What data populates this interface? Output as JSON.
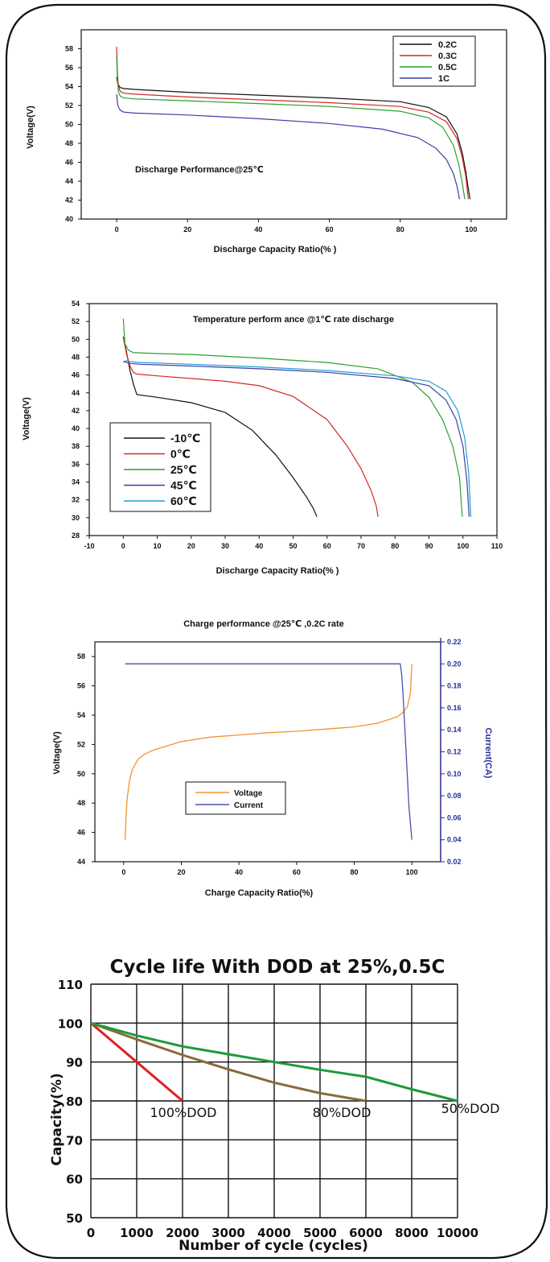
{
  "chart_data": [
    {
      "type": "line",
      "annotation": "Discharge Performance@25℃",
      "xlabel": "Discharge Capacity Ratio(% )",
      "ylabel": "Voltage(V)",
      "xlim": [
        -10,
        110
      ],
      "ylim": [
        40,
        60
      ],
      "x_ticks": [
        0,
        20,
        40,
        60,
        80,
        100
      ],
      "y_ticks": [
        40,
        42,
        44,
        46,
        48,
        50,
        52,
        54,
        56,
        58
      ],
      "legend_position": "top-right",
      "series": [
        {
          "name": "0.2C",
          "color": "#111111",
          "x": [
            0,
            0.3,
            1,
            2,
            5,
            20,
            40,
            60,
            80,
            88,
            93,
            96,
            97.5,
            98.5,
            99.2,
            99.7
          ],
          "y": [
            55,
            54.3,
            53.9,
            53.8,
            53.7,
            53.4,
            53.1,
            52.8,
            52.4,
            51.8,
            50.8,
            49.0,
            47.0,
            45.0,
            43.2,
            42.1
          ]
        },
        {
          "name": "0.3C",
          "color": "#d62728",
          "x": [
            0,
            0.2,
            0.5,
            1,
            2,
            5,
            20,
            40,
            60,
            80,
            88,
            93,
            96,
            97.5,
            98.5,
            99.2
          ],
          "y": [
            58.2,
            55.5,
            54.0,
            53.5,
            53.3,
            53.2,
            52.9,
            52.6,
            52.3,
            51.9,
            51.3,
            50.3,
            48.5,
            46.5,
            44.5,
            42.1
          ]
        },
        {
          "name": "0.5C",
          "color": "#2ca02c",
          "x": [
            0,
            0.2,
            0.5,
            1,
            2,
            5,
            20,
            40,
            60,
            80,
            88,
            92,
            95,
            96.5,
            97.5,
            98.2
          ],
          "y": [
            57.2,
            54.8,
            53.4,
            53.0,
            52.8,
            52.7,
            52.5,
            52.2,
            51.9,
            51.4,
            50.7,
            49.7,
            47.8,
            45.8,
            43.8,
            42.1
          ]
        },
        {
          "name": "1C",
          "color": "#3a3fa8",
          "x": [
            0,
            0.3,
            1,
            2,
            5,
            20,
            40,
            60,
            75,
            85,
            90,
            93,
            95,
            96,
            96.7
          ],
          "y": [
            53.2,
            52.0,
            51.5,
            51.3,
            51.2,
            51.0,
            50.6,
            50.1,
            49.5,
            48.6,
            47.5,
            46.3,
            44.8,
            43.5,
            42.1
          ]
        }
      ]
    },
    {
      "type": "line",
      "title": "Temperature perform ance @1℃ rate discharge",
      "xlabel": "Discharge Capacity Ratio(% )",
      "ylabel": "Voltage(V)",
      "xlim": [
        -10,
        110
      ],
      "ylim": [
        28,
        54
      ],
      "x_ticks": [
        -10,
        0,
        10,
        20,
        30,
        40,
        50,
        60,
        70,
        80,
        90,
        100,
        110
      ],
      "y_ticks": [
        28,
        30,
        32,
        34,
        36,
        38,
        40,
        42,
        44,
        46,
        48,
        50,
        52,
        54
      ],
      "legend_position": "bottom-left",
      "series": [
        {
          "name": "-10℃",
          "color": "#111111",
          "x": [
            0,
            1,
            2,
            3,
            4,
            10,
            20,
            30,
            38,
            45,
            50,
            54,
            56,
            57
          ],
          "y": [
            50.3,
            48.5,
            46.5,
            45.0,
            43.8,
            43.5,
            42.9,
            41.8,
            39.8,
            37.0,
            34.5,
            32.3,
            31.0,
            30.1
          ]
        },
        {
          "name": "0℃",
          "color": "#d62728",
          "x": [
            0,
            1,
            2,
            3,
            4,
            10,
            20,
            30,
            40,
            50,
            60,
            66,
            70,
            73,
            74.5,
            75
          ],
          "y": [
            50.2,
            48.3,
            47.0,
            46.3,
            46.1,
            45.9,
            45.6,
            45.3,
            44.8,
            43.6,
            41.0,
            38.0,
            35.5,
            33.0,
            31.3,
            30.1
          ]
        },
        {
          "name": "25℃",
          "color": "#2ca02c",
          "x": [
            0,
            0.5,
            1.5,
            3,
            10,
            20,
            40,
            60,
            75,
            85,
            90,
            94,
            97,
            99,
            99.8
          ],
          "y": [
            52.3,
            49.5,
            48.8,
            48.5,
            48.4,
            48.3,
            47.9,
            47.4,
            46.7,
            45.2,
            43.5,
            41.0,
            38.0,
            34.5,
            30.1
          ]
        },
        {
          "name": "45℃",
          "color": "#3a3fa8",
          "x": [
            0,
            1,
            2,
            5,
            20,
            40,
            60,
            80,
            90,
            95,
            98,
            100,
            101.2,
            101.8
          ],
          "y": [
            47.5,
            47.4,
            47.3,
            47.2,
            47.0,
            46.7,
            46.3,
            45.6,
            44.8,
            43.2,
            41.0,
            38.0,
            34.0,
            30.1
          ]
        },
        {
          "name": "60℃",
          "color": "#1f9fd6",
          "x": [
            0,
            1,
            2,
            5,
            20,
            40,
            60,
            80,
            90,
            95,
            98.5,
            100.5,
            101.7,
            102.3
          ],
          "y": [
            47.5,
            47.6,
            47.5,
            47.4,
            47.2,
            46.9,
            46.5,
            45.9,
            45.3,
            44.2,
            42.0,
            39.0,
            35.0,
            30.1
          ]
        }
      ]
    },
    {
      "type": "line",
      "title": "Charge performance @25℃ ,0.2C rate",
      "xlabel": "Charge Capacity Ratio(%)",
      "ylabel": "Voltage(V)",
      "y2label": "Current(CA)",
      "xlim": [
        -10,
        110
      ],
      "ylim": [
        44,
        59
      ],
      "y2lim": [
        0.02,
        0.22
      ],
      "x_ticks": [
        0,
        20,
        40,
        60,
        80,
        100
      ],
      "y_ticks": [
        44,
        46,
        48,
        50,
        52,
        54,
        56,
        58
      ],
      "y2_ticks": [
        "0.02",
        "0.04",
        "0.06",
        "0.08",
        "0.10",
        "0.12",
        "0.14",
        "0.16",
        "0.18",
        "0.20",
        "0.22"
      ],
      "legend_position": "center-left",
      "series": [
        {
          "name": "Voltage",
          "axis": "left",
          "color": "#f0962e",
          "x": [
            0.5,
            0.8,
            1.2,
            2,
            3,
            5,
            7,
            10,
            15,
            20,
            30,
            40,
            50,
            60,
            70,
            80,
            88,
            92,
            95,
            97,
            98.5,
            99.5,
            100
          ],
          "y": [
            45.5,
            47.0,
            48.3,
            49.5,
            50.3,
            51.0,
            51.3,
            51.6,
            51.9,
            52.2,
            52.5,
            52.65,
            52.8,
            52.9,
            53.05,
            53.2,
            53.45,
            53.7,
            53.9,
            54.2,
            54.6,
            55.5,
            57.5
          ]
        },
        {
          "name": "Current",
          "axis": "right",
          "color": "#4a50a8",
          "x": [
            0.5,
            96,
            96.5,
            97,
            98,
            99,
            100
          ],
          "y": [
            0.2,
            0.2,
            0.19,
            0.17,
            0.12,
            0.07,
            0.04
          ]
        }
      ]
    },
    {
      "type": "line",
      "title": "Cycle life With DOD at 25%,0.5C",
      "xlabel": "Number of cycle (cycles)",
      "ylabel": "Capacity(%)",
      "ylim": [
        50,
        110
      ],
      "x_tick_labels": [
        "0",
        "1000",
        "2000",
        "3000",
        "4000",
        "5000",
        "6000",
        "8000",
        "10000"
      ],
      "y_ticks": [
        50,
        60,
        70,
        80,
        90,
        100,
        110
      ],
      "series": [
        {
          "color": "#e02020",
          "x": [
            0,
            1000,
            2000
          ],
          "y": [
            100,
            90,
            80
          ],
          "label": "100%DOD"
        },
        {
          "color": "#8a6a3a",
          "x": [
            0,
            1000,
            2000,
            3000,
            4000,
            5000,
            6000
          ],
          "y": [
            100,
            95.8,
            91.8,
            88.1,
            84.7,
            82.0,
            80.0
          ],
          "label": "80%DOD"
        },
        {
          "color": "#1e9a3a",
          "x": [
            0,
            1000,
            2000,
            3000,
            4000,
            5000,
            6000,
            8000,
            10000
          ],
          "y": [
            100,
            96.8,
            94.0,
            92.0,
            90.0,
            88.0,
            86.2,
            83.0,
            80.0
          ],
          "label": "50%DOD"
        }
      ]
    }
  ]
}
